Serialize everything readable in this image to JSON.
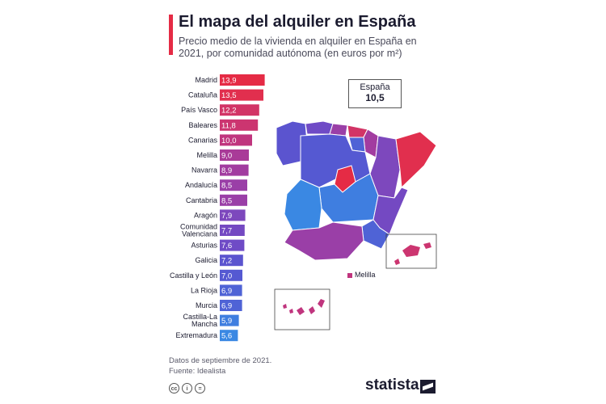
{
  "header": {
    "title": "El mapa del alquiler en España",
    "subtitle": "Precio medio de la vivienda en alquiler en España en 2021, por comunidad autónoma (en euros por m²)"
  },
  "national": {
    "name": "España",
    "value": "10,5"
  },
  "legend": {
    "melilla": "Melilla"
  },
  "footer": {
    "note": "Datos de septiembre de 2021.",
    "source": "Fuente: Idealista",
    "logo": "statista",
    "license_icons": [
      "cc-icon",
      "by-icon",
      "equals-icon"
    ]
  },
  "chart_data": {
    "type": "bar",
    "orientation": "horizontal",
    "title": "El mapa del alquiler en España",
    "subtitle": "Precio medio de la vivienda en alquiler en España en 2021, por comunidad autónoma (en euros por m²)",
    "xlim": [
      0,
      14
    ],
    "grid": false,
    "categories": [
      "Madrid",
      "Cataluña",
      "País Vasco",
      "Baleares",
      "Canarias",
      "Melilla",
      "Navarra",
      "Andalucía",
      "Cantabria",
      "Aragón",
      "Comunidad Valenciana",
      "Asturias",
      "Galicia",
      "Castilla y León",
      "La Rioja",
      "Murcia",
      "Castilla-La Mancha",
      "Extremadura"
    ],
    "labels_lines": [
      [
        "Madrid"
      ],
      [
        "Cataluña"
      ],
      [
        "País Vasco"
      ],
      [
        "Baleares"
      ],
      [
        "Canarias"
      ],
      [
        "Melilla"
      ],
      [
        "Navarra"
      ],
      [
        "Andalucía"
      ],
      [
        "Cantabria"
      ],
      [
        "Aragón"
      ],
      [
        "Comunidad",
        "Valenciana"
      ],
      [
        "Asturias"
      ],
      [
        "Galicia"
      ],
      [
        "Castilla y León"
      ],
      [
        "La Rioja"
      ],
      [
        "Murcia"
      ],
      [
        "Castilla-La",
        "Mancha"
      ],
      [
        "Extremadura"
      ]
    ],
    "values": [
      13.9,
      13.5,
      12.2,
      11.8,
      10.0,
      9.0,
      8.9,
      8.5,
      8.5,
      7.9,
      7.7,
      7.6,
      7.2,
      7.0,
      6.9,
      6.9,
      5.9,
      5.6
    ],
    "value_labels": [
      "13,9",
      "13,5",
      "12,2",
      "11,8",
      "10,0",
      "9,0",
      "8,9",
      "8,5",
      "8,5",
      "7,9",
      "7,7",
      "7,6",
      "7,2",
      "7,0",
      "6,9",
      "6,9",
      "5,9",
      "5,6"
    ],
    "colors": [
      "#e52b45",
      "#e12f4e",
      "#d23466",
      "#cc3570",
      "#c0357e",
      "#a93b98",
      "#a23ca0",
      "#9a3fa7",
      "#9a3fa7",
      "#7d48bd",
      "#7449c2",
      "#6f4bc6",
      "#5b54cf",
      "#5559d2",
      "#4f63d6",
      "#4f63d6",
      "#3f7ee0",
      "#3a88e3"
    ]
  }
}
